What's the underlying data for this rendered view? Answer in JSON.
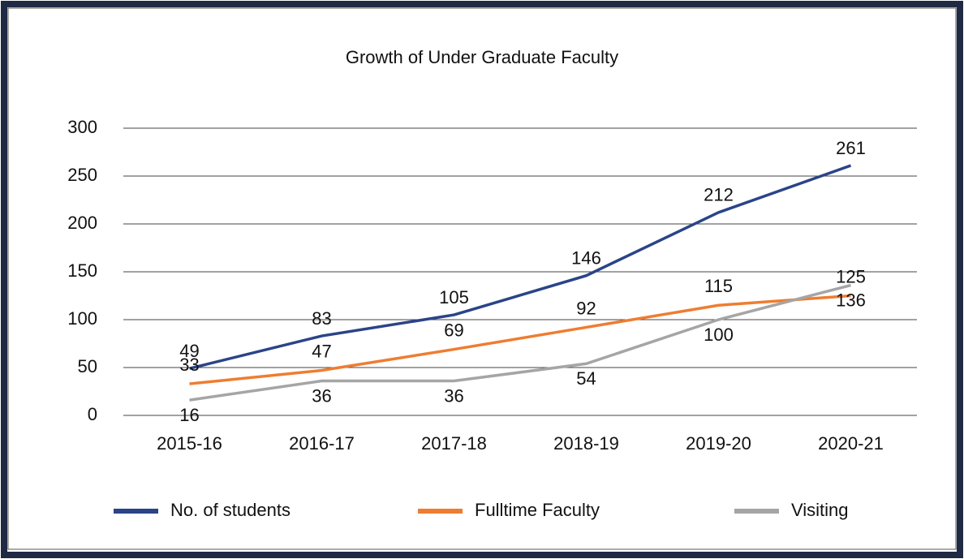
{
  "chart_data": {
    "type": "line",
    "title": "Growth of Under Graduate Faculty",
    "categories": [
      "2015-16",
      "2016-17",
      "2017-18",
      "2018-19",
      "2019-20",
      "2020-21"
    ],
    "series": [
      {
        "name": "No. of students",
        "color": "#2a4488",
        "values": [
          49,
          83,
          105,
          146,
          212,
          261
        ]
      },
      {
        "name": "Fulltime Faculty",
        "color": "#ee7d31",
        "values": [
          33,
          47,
          69,
          92,
          115,
          125
        ]
      },
      {
        "name": "Visiting",
        "color": "#a5a5a5",
        "values": [
          16,
          36,
          36,
          54,
          100,
          136
        ]
      }
    ],
    "ylim": [
      0,
      300
    ],
    "yticks": [
      0,
      50,
      100,
      150,
      200,
      250,
      300
    ],
    "grid": true,
    "legend": "bottom"
  }
}
